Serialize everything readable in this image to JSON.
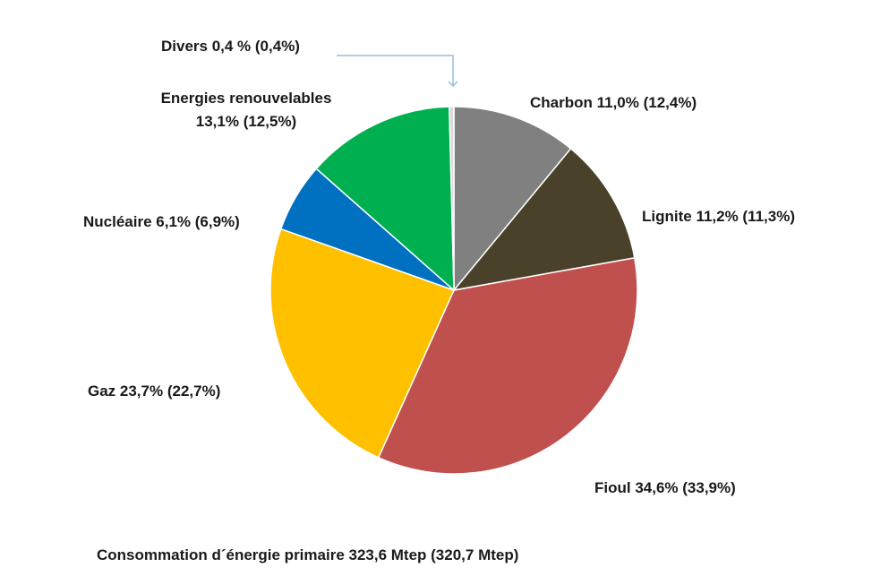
{
  "chart_data": {
    "type": "pie",
    "slices": [
      {
        "name": "Charbon",
        "value": 11.0,
        "label": "Charbon 11,0% (12,4%)",
        "color": "#808080"
      },
      {
        "name": "Lignite",
        "value": 11.2,
        "label": "Lignite 11,2% (11,3%)",
        "color": "#4a412a"
      },
      {
        "name": "Fioul",
        "value": 34.6,
        "label": "Fioul 34,6% (33,9%)",
        "color": "#c0504d"
      },
      {
        "name": "Gaz",
        "value": 23.7,
        "label": "Gaz 23,7% (22,7%)",
        "color": "#ffc000"
      },
      {
        "name": "Nucléaire",
        "value": 6.1,
        "label": "Nucléaire 6,1% (6,9%)",
        "color": "#0070c0"
      },
      {
        "name": "Energies renouvelables",
        "value": 13.1,
        "label_lines": [
          "Energies renouvelables",
          "13,1% (12,5%)"
        ],
        "color": "#00b050"
      },
      {
        "name": "Divers",
        "value": 0.4,
        "label": "Divers 0,4 % (0,4%)",
        "color": "#d9d9d9"
      }
    ],
    "footer": "Consommation d´énergie primaire  323,6 Mtep (320,7 Mtep)"
  }
}
